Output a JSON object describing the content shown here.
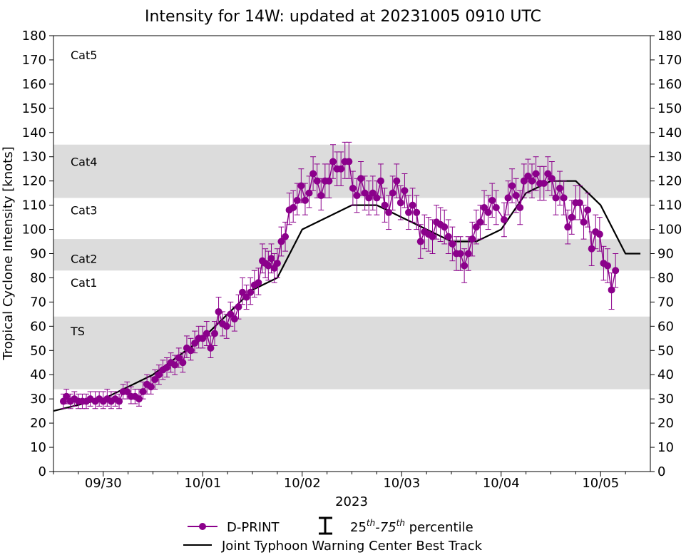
{
  "chart_data": {
    "type": "scatter",
    "title": "Intensity for 14W: updated at 20231005 0910 UTC",
    "xlabel": "2023",
    "ylabel": "Tropical Cyclone Intensity [knots]",
    "ylim": [
      0,
      180
    ],
    "xlim_days": [
      -0.5,
      5.5
    ],
    "y_ticks": [
      0,
      10,
      20,
      30,
      40,
      50,
      60,
      70,
      80,
      90,
      100,
      110,
      120,
      130,
      140,
      150,
      160,
      170,
      180
    ],
    "x_ticks": [
      {
        "day": 0,
        "label": "09/30"
      },
      {
        "day": 1,
        "label": "10/01"
      },
      {
        "day": 2,
        "label": "10/02"
      },
      {
        "day": 3,
        "label": "10/03"
      },
      {
        "day": 4,
        "label": "10/04"
      },
      {
        "day": 5,
        "label": "10/05"
      }
    ],
    "x_units_note": "days since 2023-09-30 00 UTC",
    "category_bands": [
      {
        "label": "TS",
        "ymin": 34,
        "ymax": 64,
        "shaded": true,
        "label_y": 58
      },
      {
        "label": "Cat1",
        "ymin": 64,
        "ymax": 83,
        "shaded": false,
        "label_y": 78
      },
      {
        "label": "Cat2",
        "ymin": 83,
        "ymax": 96,
        "shaded": true,
        "label_y": 88
      },
      {
        "label": "Cat3",
        "ymin": 96,
        "ymax": 113,
        "shaded": false,
        "label_y": 108
      },
      {
        "label": "Cat4",
        "ymin": 113,
        "ymax": 135,
        "shaded": true,
        "label_y": 128
      },
      {
        "label": "Cat5",
        "ymin": 135,
        "ymax": 180,
        "shaded": false,
        "label_y": 172
      }
    ],
    "colors": {
      "dprint": "#8b008b",
      "best_track": "#000000",
      "band": "#dcdcdc"
    },
    "legend": {
      "placement": "bottom-center",
      "dprint_label": "D-PRINT",
      "percentile_base": "25",
      "percentile_mid": "-75",
      "percentile_suffix": " percentile",
      "percentile_sup": "th",
      "best_track_label": "Joint Typhoon Warning Center Best Track"
    },
    "best_track": {
      "name": "Joint Typhoon Warning Center Best Track",
      "x": [
        -0.5,
        0,
        0.5,
        1,
        1.5,
        1.75,
        2,
        2.5,
        2.75,
        3,
        3.5,
        3.75,
        4,
        4.25,
        4.5,
        4.75,
        5,
        5.25,
        5.4
      ],
      "y": [
        25,
        30,
        40,
        55,
        75,
        80,
        100,
        110,
        110,
        105,
        95,
        95,
        100,
        115,
        120,
        120,
        110,
        90,
        90
      ]
    },
    "dprint": {
      "name": "D-PRINT",
      "points": [
        {
          "x": -0.4,
          "y": 29,
          "lo": 26,
          "hi": 32
        },
        {
          "x": -0.37,
          "y": 31,
          "lo": 28,
          "hi": 34
        },
        {
          "x": -0.33,
          "y": 29,
          "lo": 26,
          "hi": 32
        },
        {
          "x": -0.29,
          "y": 30,
          "lo": 27,
          "hi": 33
        },
        {
          "x": -0.25,
          "y": 29,
          "lo": 26,
          "hi": 32
        },
        {
          "x": -0.21,
          "y": 29,
          "lo": 26,
          "hi": 32
        },
        {
          "x": -0.17,
          "y": 29,
          "lo": 26,
          "hi": 32
        },
        {
          "x": -0.13,
          "y": 30,
          "lo": 27,
          "hi": 33
        },
        {
          "x": -0.08,
          "y": 29,
          "lo": 26,
          "hi": 33
        },
        {
          "x": -0.04,
          "y": 30,
          "lo": 27,
          "hi": 33
        },
        {
          "x": 0.0,
          "y": 29,
          "lo": 26,
          "hi": 33
        },
        {
          "x": 0.04,
          "y": 30,
          "lo": 27,
          "hi": 34
        },
        {
          "x": 0.08,
          "y": 29,
          "lo": 26,
          "hi": 33
        },
        {
          "x": 0.12,
          "y": 30,
          "lo": 27,
          "hi": 33
        },
        {
          "x": 0.16,
          "y": 29,
          "lo": 26,
          "hi": 32
        },
        {
          "x": 0.2,
          "y": 33,
          "lo": 30,
          "hi": 36
        },
        {
          "x": 0.24,
          "y": 33,
          "lo": 30,
          "hi": 37
        },
        {
          "x": 0.28,
          "y": 31,
          "lo": 28,
          "hi": 35
        },
        {
          "x": 0.32,
          "y": 31,
          "lo": 28,
          "hi": 34
        },
        {
          "x": 0.36,
          "y": 30,
          "lo": 27,
          "hi": 34
        },
        {
          "x": 0.4,
          "y": 33,
          "lo": 30,
          "hi": 37
        },
        {
          "x": 0.44,
          "y": 36,
          "lo": 32,
          "hi": 40
        },
        {
          "x": 0.48,
          "y": 35,
          "lo": 32,
          "hi": 39
        },
        {
          "x": 0.52,
          "y": 38,
          "lo": 34,
          "hi": 42
        },
        {
          "x": 0.56,
          "y": 40,
          "lo": 36,
          "hi": 44
        },
        {
          "x": 0.6,
          "y": 42,
          "lo": 38,
          "hi": 46
        },
        {
          "x": 0.64,
          "y": 43,
          "lo": 39,
          "hi": 47
        },
        {
          "x": 0.68,
          "y": 45,
          "lo": 41,
          "hi": 49
        },
        {
          "x": 0.72,
          "y": 44,
          "lo": 40,
          "hi": 48
        },
        {
          "x": 0.76,
          "y": 47,
          "lo": 43,
          "hi": 51
        },
        {
          "x": 0.8,
          "y": 45,
          "lo": 41,
          "hi": 49
        },
        {
          "x": 0.84,
          "y": 51,
          "lo": 47,
          "hi": 56
        },
        {
          "x": 0.88,
          "y": 50,
          "lo": 46,
          "hi": 55
        },
        {
          "x": 0.92,
          "y": 53,
          "lo": 49,
          "hi": 58
        },
        {
          "x": 0.96,
          "y": 55,
          "lo": 51,
          "hi": 60
        },
        {
          "x": 1.0,
          "y": 55,
          "lo": 51,
          "hi": 60
        },
        {
          "x": 1.04,
          "y": 57,
          "lo": 52,
          "hi": 62
        },
        {
          "x": 1.08,
          "y": 51,
          "lo": 47,
          "hi": 56
        },
        {
          "x": 1.12,
          "y": 57,
          "lo": 52,
          "hi": 62
        },
        {
          "x": 1.16,
          "y": 66,
          "lo": 61,
          "hi": 72
        },
        {
          "x": 1.2,
          "y": 61,
          "lo": 56,
          "hi": 66
        },
        {
          "x": 1.24,
          "y": 60,
          "lo": 55,
          "hi": 65
        },
        {
          "x": 1.28,
          "y": 65,
          "lo": 60,
          "hi": 70
        },
        {
          "x": 1.32,
          "y": 63,
          "lo": 58,
          "hi": 68
        },
        {
          "x": 1.36,
          "y": 68,
          "lo": 63,
          "hi": 73
        },
        {
          "x": 1.4,
          "y": 74,
          "lo": 69,
          "hi": 80
        },
        {
          "x": 1.44,
          "y": 72,
          "lo": 67,
          "hi": 77
        },
        {
          "x": 1.48,
          "y": 74,
          "lo": 69,
          "hi": 80
        },
        {
          "x": 1.52,
          "y": 77,
          "lo": 72,
          "hi": 83
        },
        {
          "x": 1.56,
          "y": 78,
          "lo": 73,
          "hi": 84
        },
        {
          "x": 1.6,
          "y": 87,
          "lo": 82,
          "hi": 94
        },
        {
          "x": 1.63,
          "y": 86,
          "lo": 80,
          "hi": 92
        },
        {
          "x": 1.66,
          "y": 85,
          "lo": 79,
          "hi": 91
        },
        {
          "x": 1.69,
          "y": 88,
          "lo": 82,
          "hi": 94
        },
        {
          "x": 1.72,
          "y": 84,
          "lo": 78,
          "hi": 90
        },
        {
          "x": 1.75,
          "y": 86,
          "lo": 80,
          "hi": 92
        },
        {
          "x": 1.79,
          "y": 95,
          "lo": 89,
          "hi": 101
        },
        {
          "x": 1.83,
          "y": 97,
          "lo": 91,
          "hi": 103
        },
        {
          "x": 1.87,
          "y": 108,
          "lo": 102,
          "hi": 115
        },
        {
          "x": 1.91,
          "y": 109,
          "lo": 103,
          "hi": 116
        },
        {
          "x": 1.95,
          "y": 112,
          "lo": 106,
          "hi": 119
        },
        {
          "x": 1.99,
          "y": 118,
          "lo": 111,
          "hi": 125
        },
        {
          "x": 2.03,
          "y": 112,
          "lo": 106,
          "hi": 119
        },
        {
          "x": 2.07,
          "y": 115,
          "lo": 109,
          "hi": 122
        },
        {
          "x": 2.11,
          "y": 123,
          "lo": 116,
          "hi": 130
        },
        {
          "x": 2.15,
          "y": 120,
          "lo": 113,
          "hi": 127
        },
        {
          "x": 2.19,
          "y": 114,
          "lo": 108,
          "hi": 121
        },
        {
          "x": 2.23,
          "y": 120,
          "lo": 113,
          "hi": 127
        },
        {
          "x": 2.27,
          "y": 120,
          "lo": 113,
          "hi": 127
        },
        {
          "x": 2.31,
          "y": 128,
          "lo": 121,
          "hi": 135
        },
        {
          "x": 2.35,
          "y": 125,
          "lo": 118,
          "hi": 132
        },
        {
          "x": 2.39,
          "y": 125,
          "lo": 118,
          "hi": 132
        },
        {
          "x": 2.43,
          "y": 128,
          "lo": 121,
          "hi": 136
        },
        {
          "x": 2.47,
          "y": 128,
          "lo": 121,
          "hi": 136
        },
        {
          "x": 2.51,
          "y": 117,
          "lo": 110,
          "hi": 124
        },
        {
          "x": 2.55,
          "y": 114,
          "lo": 107,
          "hi": 121
        },
        {
          "x": 2.59,
          "y": 121,
          "lo": 114,
          "hi": 128
        },
        {
          "x": 2.63,
          "y": 115,
          "lo": 108,
          "hi": 122
        },
        {
          "x": 2.67,
          "y": 113,
          "lo": 106,
          "hi": 120
        },
        {
          "x": 2.71,
          "y": 115,
          "lo": 108,
          "hi": 122
        },
        {
          "x": 2.75,
          "y": 113,
          "lo": 106,
          "hi": 120
        },
        {
          "x": 2.79,
          "y": 120,
          "lo": 113,
          "hi": 127
        },
        {
          "x": 2.83,
          "y": 110,
          "lo": 103,
          "hi": 117
        },
        {
          "x": 2.87,
          "y": 107,
          "lo": 100,
          "hi": 114
        },
        {
          "x": 2.91,
          "y": 115,
          "lo": 108,
          "hi": 122
        },
        {
          "x": 2.95,
          "y": 120,
          "lo": 113,
          "hi": 127
        },
        {
          "x": 2.99,
          "y": 111,
          "lo": 104,
          "hi": 118
        },
        {
          "x": 3.03,
          "y": 116,
          "lo": 109,
          "hi": 123
        },
        {
          "x": 3.07,
          "y": 107,
          "lo": 100,
          "hi": 114
        },
        {
          "x": 3.11,
          "y": 110,
          "lo": 103,
          "hi": 117
        },
        {
          "x": 3.15,
          "y": 107,
          "lo": 100,
          "hi": 114
        },
        {
          "x": 3.19,
          "y": 95,
          "lo": 88,
          "hi": 102
        },
        {
          "x": 3.23,
          "y": 99,
          "lo": 92,
          "hi": 106
        },
        {
          "x": 3.27,
          "y": 98,
          "lo": 91,
          "hi": 105
        },
        {
          "x": 3.31,
          "y": 97,
          "lo": 90,
          "hi": 104
        },
        {
          "x": 3.35,
          "y": 103,
          "lo": 96,
          "hi": 110
        },
        {
          "x": 3.39,
          "y": 102,
          "lo": 95,
          "hi": 109
        },
        {
          "x": 3.43,
          "y": 101,
          "lo": 94,
          "hi": 108
        },
        {
          "x": 3.47,
          "y": 97,
          "lo": 90,
          "hi": 104
        },
        {
          "x": 3.51,
          "y": 94,
          "lo": 87,
          "hi": 101
        },
        {
          "x": 3.55,
          "y": 90,
          "lo": 83,
          "hi": 97
        },
        {
          "x": 3.59,
          "y": 90,
          "lo": 83,
          "hi": 97
        },
        {
          "x": 3.63,
          "y": 85,
          "lo": 78,
          "hi": 92
        },
        {
          "x": 3.67,
          "y": 90,
          "lo": 83,
          "hi": 97
        },
        {
          "x": 3.71,
          "y": 96,
          "lo": 89,
          "hi": 103
        },
        {
          "x": 3.75,
          "y": 101,
          "lo": 94,
          "hi": 108
        },
        {
          "x": 3.79,
          "y": 103,
          "lo": 96,
          "hi": 110
        },
        {
          "x": 3.83,
          "y": 109,
          "lo": 102,
          "hi": 116
        },
        {
          "x": 3.87,
          "y": 107,
          "lo": 100,
          "hi": 114
        },
        {
          "x": 3.91,
          "y": 112,
          "lo": 105,
          "hi": 119
        },
        {
          "x": 3.95,
          "y": 109,
          "lo": 102,
          "hi": 116
        },
        {
          "x": 4.03,
          "y": 104,
          "lo": 97,
          "hi": 111
        },
        {
          "x": 4.07,
          "y": 113,
          "lo": 106,
          "hi": 120
        },
        {
          "x": 4.11,
          "y": 118,
          "lo": 111,
          "hi": 125
        },
        {
          "x": 4.15,
          "y": 114,
          "lo": 107,
          "hi": 121
        },
        {
          "x": 4.19,
          "y": 109,
          "lo": 102,
          "hi": 116
        },
        {
          "x": 4.23,
          "y": 120,
          "lo": 113,
          "hi": 127
        },
        {
          "x": 4.27,
          "y": 122,
          "lo": 115,
          "hi": 129
        },
        {
          "x": 4.31,
          "y": 120,
          "lo": 113,
          "hi": 127
        },
        {
          "x": 4.35,
          "y": 123,
          "lo": 116,
          "hi": 130
        },
        {
          "x": 4.39,
          "y": 119,
          "lo": 112,
          "hi": 126
        },
        {
          "x": 4.43,
          "y": 119,
          "lo": 112,
          "hi": 126
        },
        {
          "x": 4.47,
          "y": 123,
          "lo": 116,
          "hi": 130
        },
        {
          "x": 4.51,
          "y": 121,
          "lo": 114,
          "hi": 128
        },
        {
          "x": 4.55,
          "y": 113,
          "lo": 106,
          "hi": 120
        },
        {
          "x": 4.59,
          "y": 117,
          "lo": 110,
          "hi": 124
        },
        {
          "x": 4.63,
          "y": 113,
          "lo": 106,
          "hi": 120
        },
        {
          "x": 4.67,
          "y": 101,
          "lo": 94,
          "hi": 108
        },
        {
          "x": 4.71,
          "y": 105,
          "lo": 98,
          "hi": 112
        },
        {
          "x": 4.75,
          "y": 111,
          "lo": 104,
          "hi": 118
        },
        {
          "x": 4.79,
          "y": 111,
          "lo": 104,
          "hi": 118
        },
        {
          "x": 4.83,
          "y": 103,
          "lo": 96,
          "hi": 110
        },
        {
          "x": 4.87,
          "y": 108,
          "lo": 101,
          "hi": 115
        },
        {
          "x": 4.91,
          "y": 92,
          "lo": 85,
          "hi": 99
        },
        {
          "x": 4.95,
          "y": 99,
          "lo": 92,
          "hi": 106
        },
        {
          "x": 4.99,
          "y": 98,
          "lo": 91,
          "hi": 105
        },
        {
          "x": 5.03,
          "y": 86,
          "lo": 79,
          "hi": 93
        },
        {
          "x": 5.07,
          "y": 85,
          "lo": 78,
          "hi": 92
        },
        {
          "x": 5.11,
          "y": 75,
          "lo": 67,
          "hi": 82
        },
        {
          "x": 5.15,
          "y": 83,
          "lo": 76,
          "hi": 90
        }
      ]
    }
  }
}
